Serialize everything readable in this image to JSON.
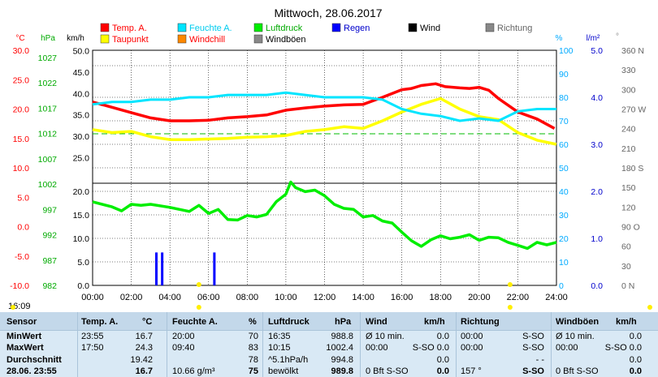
{
  "chart_data": {
    "type": "line",
    "title": "Mittwoch, 28.06.2017",
    "x": {
      "tick_labels": [
        "00:00",
        "02:00",
        "04:00",
        "06:00",
        "08:00",
        "10:00",
        "12:00",
        "14:00",
        "16:00",
        "18:00",
        "20:00",
        "22:00",
        "24:00"
      ],
      "range_hours": [
        0,
        24
      ]
    },
    "axis_units": {
      "temp": "°C",
      "pressure": "hPa",
      "wind": "km/h",
      "humidity": "%",
      "rain": "l/m²",
      "direction": "°"
    },
    "axes": {
      "temp_ticks": [
        "30.0",
        "25.0",
        "20.0",
        "15.0",
        "10.0",
        "5.0",
        "0.0",
        "-5.0",
        "-10.0"
      ],
      "pressure_ticks": [
        "1027",
        "1022",
        "1017",
        "1012",
        "1007",
        "1002",
        "997",
        "992",
        "987",
        "982"
      ],
      "wind_top_ticks": [
        "50.0",
        "45.0",
        "40.0",
        "35.0",
        "30.0",
        "25.0"
      ],
      "wind_bottom_ticks": [
        "20.0",
        "15.0",
        "10.0",
        "5.0",
        "0.0"
      ],
      "humidity_ticks": [
        "100",
        "90",
        "80",
        "70",
        "60",
        "50",
        "40",
        "30",
        "20",
        "10",
        "0"
      ],
      "rain_ticks": [
        "5.0",
        "4.0",
        "3.0",
        "2.0",
        "1.0",
        "0.0"
      ],
      "direction_ticks": [
        "360 N",
        "330",
        "300",
        "270 W",
        "240",
        "210",
        "180 S",
        "150",
        "120",
        "90 O",
        "60",
        "30",
        "0 N"
      ],
      "temp_range": [
        -10,
        30
      ],
      "humidity_range": [
        0,
        100
      ],
      "rain_range": [
        0,
        5
      ]
    },
    "legend": [
      {
        "label": "Temp. A.",
        "color": "#ff0000"
      },
      {
        "label": "Feuchte A.",
        "color": "#00e5ff"
      },
      {
        "label": "Luftdruck",
        "color": "#00ee00"
      },
      {
        "label": "Regen",
        "color": "#0000ff"
      },
      {
        "label": "Wind",
        "color": "#000000"
      },
      {
        "label": "Richtung",
        "color": "#888888"
      },
      {
        "label": "Taupunkt",
        "color": "#ffff00"
      },
      {
        "label": "Windchill",
        "color": "#ff8800"
      },
      {
        "label": "Windböen",
        "color": "#888888"
      }
    ],
    "grid": true,
    "series": [
      {
        "name": "Temp. A.",
        "color": "#ff0000",
        "unit": "°C",
        "x": [
          0,
          1,
          2,
          3,
          4,
          5,
          6,
          7,
          8,
          9,
          10,
          11,
          12,
          13,
          14,
          15,
          16,
          16.5,
          17,
          17.75,
          18.25,
          19,
          19.5,
          20,
          20.5,
          21,
          22,
          23,
          23.9
        ],
        "y": [
          21.2,
          20.3,
          19.4,
          18.5,
          18.0,
          18.0,
          18.1,
          18.5,
          18.7,
          19.0,
          19.8,
          20.2,
          20.5,
          20.7,
          20.8,
          22.0,
          23.3,
          23.5,
          24.0,
          24.3,
          23.8,
          23.6,
          23.5,
          23.7,
          23.2,
          21.8,
          19.5,
          18.3,
          16.7
        ]
      },
      {
        "name": "Taupunkt",
        "color": "#ffff00",
        "unit": "°C",
        "x": [
          0,
          1,
          2,
          3,
          4,
          5,
          6,
          7,
          8,
          9,
          10,
          11,
          12,
          13,
          14,
          15,
          16,
          17,
          18,
          19,
          20,
          21,
          22,
          23,
          24
        ],
        "y": [
          16.5,
          16.0,
          16.2,
          15.3,
          14.8,
          14.8,
          14.9,
          15.0,
          15.2,
          15.3,
          15.5,
          16.2,
          16.5,
          17.0,
          16.7,
          18.0,
          19.5,
          20.8,
          21.8,
          20.0,
          18.7,
          18.2,
          16.0,
          14.7,
          14.0
        ]
      },
      {
        "name": "Feuchte A.",
        "color": "#00e5ff",
        "unit": "%",
        "x": [
          0,
          1,
          2,
          3,
          4,
          5,
          6,
          7,
          8,
          9,
          10,
          11,
          12,
          13,
          14,
          15,
          16,
          17,
          18,
          19,
          20,
          21,
          22,
          23,
          24
        ],
        "y": [
          77,
          78,
          78,
          79,
          79,
          80,
          80,
          81,
          81,
          81,
          82,
          81,
          80,
          80,
          80,
          79,
          75,
          73,
          72,
          70,
          71,
          70,
          74,
          75,
          75
        ]
      },
      {
        "name": "Luftdruck",
        "color": "#00ee00",
        "unit": "hPa",
        "x": [
          0,
          1,
          1.5,
          2,
          2.5,
          3,
          4,
          5,
          5.5,
          6,
          6.5,
          7,
          7.5,
          8,
          8.5,
          9,
          9.5,
          10,
          10.25,
          10.5,
          11,
          11.5,
          12,
          12.5,
          13,
          13.5,
          14,
          14.5,
          15,
          15.5,
          16,
          16.5,
          17,
          17.5,
          18,
          18.5,
          19,
          19.5,
          20,
          20.5,
          21,
          21.5,
          22,
          22.5,
          23,
          23.5,
          24
        ],
        "y": [
          998.5,
          997.5,
          996.7,
          998.0,
          997.8,
          998.0,
          997.4,
          996.6,
          997.8,
          996.2,
          997.0,
          995.0,
          994.9,
          995.8,
          995.5,
          996.0,
          998.5,
          1000.0,
          1002.4,
          1001.3,
          1000.5,
          1000.8,
          999.7,
          998.0,
          997.2,
          997.0,
          995.5,
          995.8,
          994.7,
          994.3,
          992.5,
          990.8,
          989.7,
          991.0,
          991.8,
          991.2,
          991.5,
          992.0,
          990.9,
          991.5,
          991.4,
          990.5,
          989.9,
          989.3,
          990.5,
          990.0,
          990.5
        ]
      },
      {
        "name": "Regen",
        "color": "#0000ff",
        "unit": "l/m²",
        "x": [
          3.3,
          3.6,
          6.3
        ],
        "y": [
          0.7,
          0.7,
          0.7
        ]
      }
    ],
    "reference_line": {
      "label": "",
      "value_temp": 15.8,
      "color": "#00bb00"
    }
  },
  "header_time": "16:09",
  "table": {
    "headers": {
      "sensor": "Sensor",
      "temp": "Temp. A.",
      "temp_unit": "°C",
      "hum": "Feuchte A.",
      "hum_unit": "%",
      "press": "Luftdruck",
      "press_unit": "hPa",
      "wind": "Wind",
      "wind_unit": "km/h",
      "dir": "Richtung",
      "gust": "Windböen",
      "gust_unit": "km/h"
    },
    "row_labels": [
      "MinWert",
      "MaxWert",
      "Durchschnitt",
      "28.06. 23:55"
    ],
    "temp": [
      [
        "23:55",
        "16.7"
      ],
      [
        "17:50",
        "24.3"
      ],
      [
        "",
        "19.42"
      ],
      [
        "",
        "16.7"
      ]
    ],
    "hum": [
      [
        "20:00",
        "70"
      ],
      [
        "09:40",
        "83"
      ],
      [
        "",
        "78"
      ],
      [
        "10.66 g/m³",
        "75"
      ]
    ],
    "press": [
      [
        "16:35",
        "988.8"
      ],
      [
        "10:15",
        "1002.4"
      ],
      [
        "^5.1hPa/h",
        "994.8"
      ],
      [
        "bewölkt",
        "989.8"
      ]
    ],
    "wind": [
      [
        "Ø 10 min.",
        "0.0"
      ],
      [
        "00:00",
        "S-SO 0.0"
      ],
      [
        "",
        "0.0"
      ],
      [
        "0 Bft S-SO",
        "0.0"
      ]
    ],
    "dir": [
      [
        "00:00",
        "S-SO"
      ],
      [
        "00:00",
        "S-SO"
      ],
      [
        "",
        "- -"
      ],
      [
        "157 °",
        "S-SO"
      ]
    ],
    "gust": [
      [
        "Ø 10 min.",
        "0.0"
      ],
      [
        "00:00",
        "S-SO 0.0"
      ],
      [
        "",
        "0.0"
      ],
      [
        "0 Bft S-SO",
        "0.0"
      ]
    ]
  }
}
